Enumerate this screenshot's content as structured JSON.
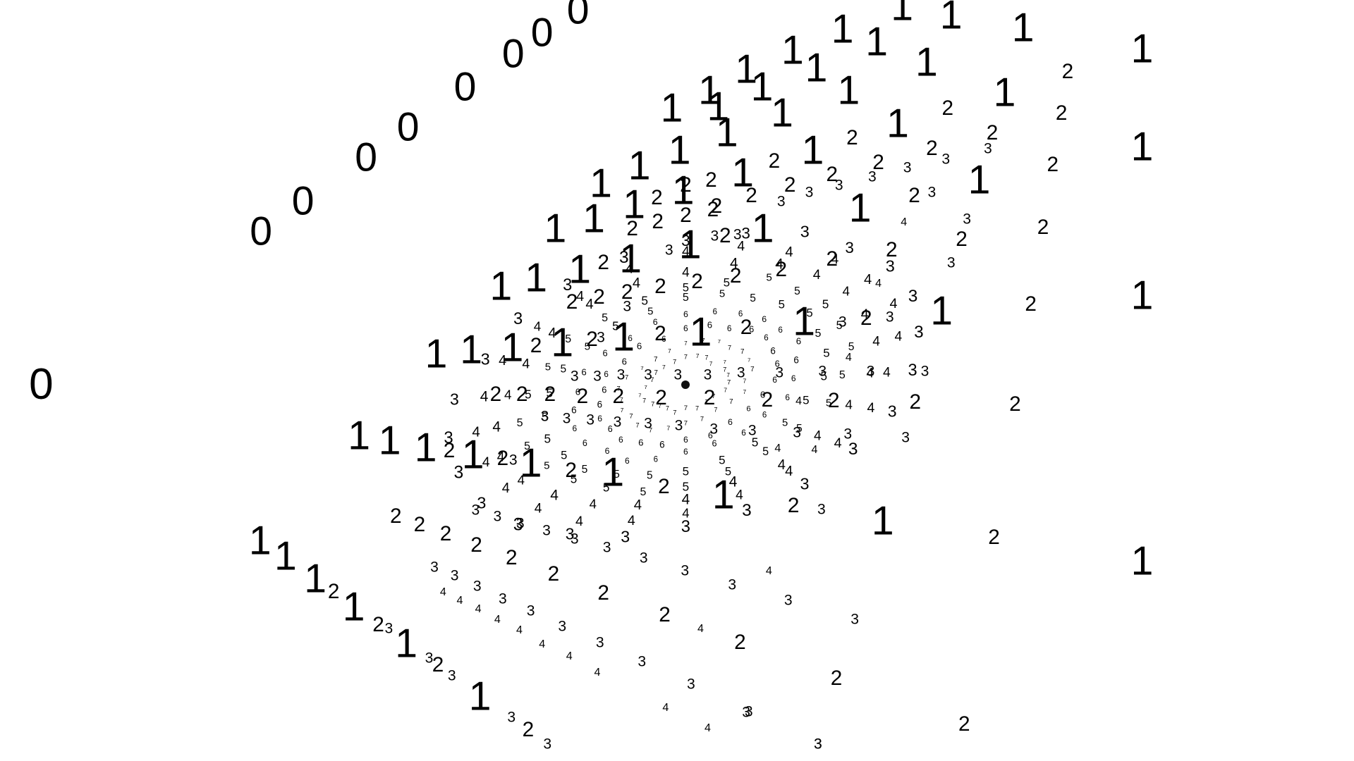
{
  "colors": {
    "background": "#ffffff",
    "glyph": "#000000",
    "center_dot": "#111111"
  },
  "labels": {
    "zero": "0",
    "one": "1",
    "two": "2",
    "three": "3",
    "four": "4",
    "five": "5",
    "six": "6",
    "seven": "7"
  }
}
